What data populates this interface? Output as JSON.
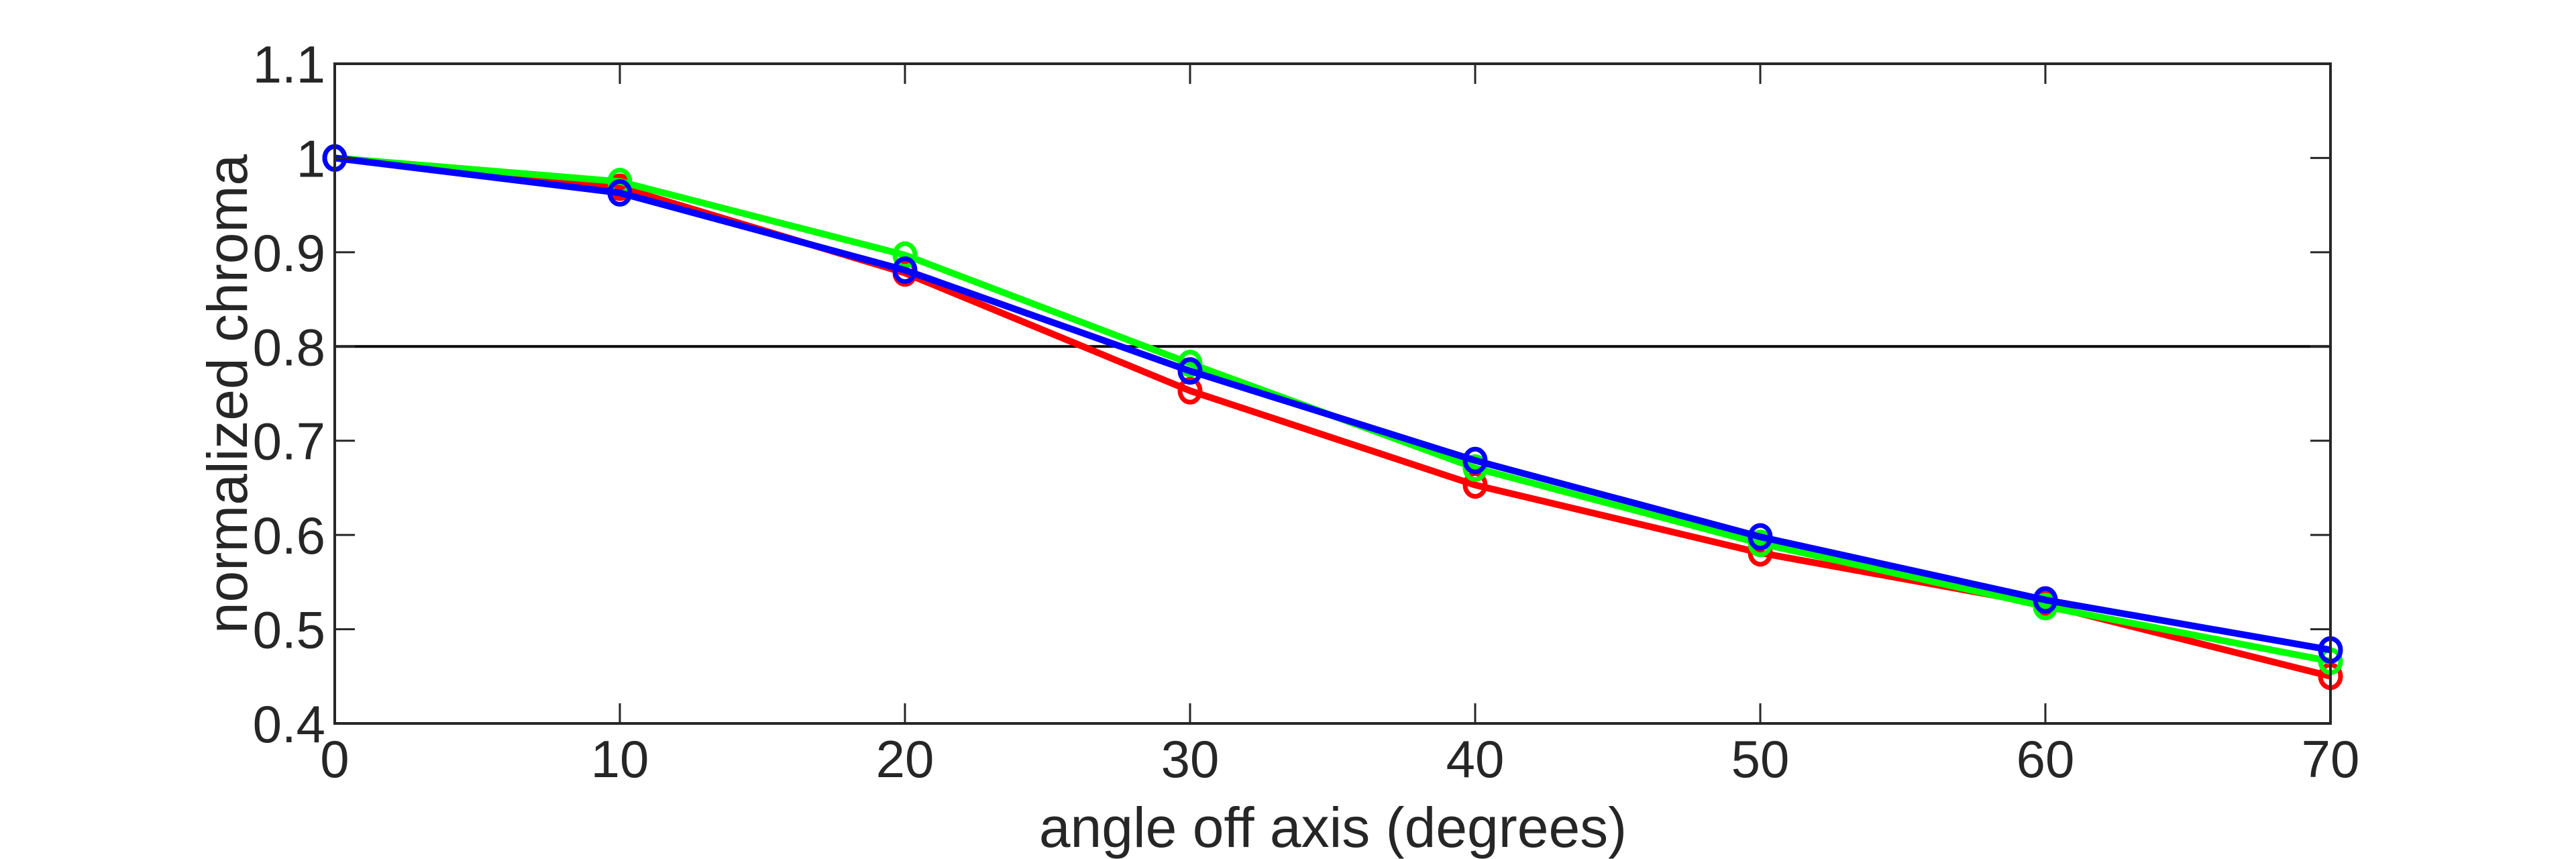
{
  "chart_data": {
    "type": "line",
    "title": "",
    "xlabel": "angle off axis (degrees)",
    "ylabel": "normalized chroma",
    "xlim": [
      0,
      70
    ],
    "ylim": [
      0.4,
      1.1
    ],
    "xticks": [
      0,
      10,
      20,
      30,
      40,
      50,
      60,
      70
    ],
    "yticks": [
      0.4,
      0.5,
      0.6,
      0.7,
      0.8,
      0.9,
      1,
      1.1
    ],
    "xtick_labels": [
      "0",
      "10",
      "20",
      "30",
      "40",
      "50",
      "60",
      "70"
    ],
    "ytick_labels": [
      "0.4",
      "0.5",
      "0.6",
      "0.7",
      "0.8",
      "0.9",
      "1",
      "1.1"
    ],
    "grid": false,
    "legend": "none",
    "marker": "circle",
    "x": [
      0,
      10,
      20,
      30,
      40,
      50,
      60,
      70
    ],
    "reference_line": {
      "y": 0.8,
      "color": "#000000"
    },
    "series": [
      {
        "color": "#ff0000",
        "values": [
          1.0,
          0.969,
          0.878,
          0.753,
          0.653,
          0.581,
          0.526,
          0.45
        ]
      },
      {
        "color": "#00ff00",
        "values": [
          1.0,
          0.975,
          0.897,
          0.782,
          0.671,
          0.591,
          0.524,
          0.466
        ]
      },
      {
        "color": "#0000ff",
        "values": [
          1.0,
          0.963,
          0.881,
          0.774,
          0.679,
          0.598,
          0.531,
          0.478
        ]
      }
    ],
    "axis_color": "#262626"
  }
}
